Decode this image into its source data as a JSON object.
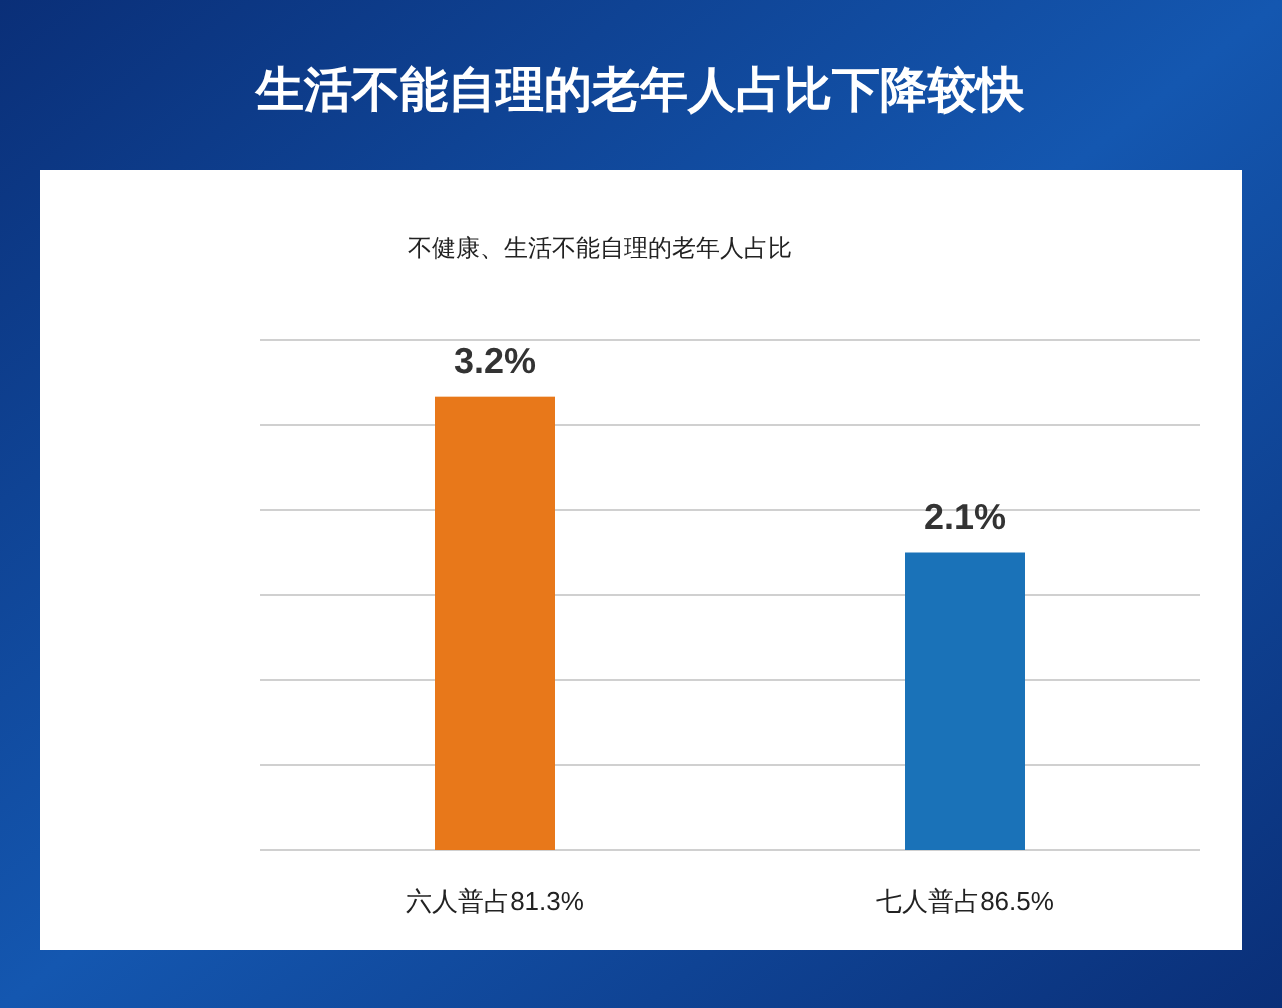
{
  "chart_data": {
    "type": "bar",
    "title": "生活不能自理的老年人占比下降较快",
    "subtitle": "不健康、生活不能自理的老年人占比",
    "categories": [
      "六人普占81.3%",
      "七人普占86.5%"
    ],
    "values": [
      3.2,
      2.1
    ],
    "colors": [
      "#e8781a",
      "#1a72b8"
    ],
    "value_labels": [
      "3.2%",
      "2.1%"
    ],
    "ylim": [
      0,
      3.6
    ],
    "yticks": [
      {
        "value": 0,
        "label": null
      },
      {
        "value": 0.6,
        "label": null
      },
      {
        "value": 1.2,
        "label": null
      },
      {
        "value": 1.8,
        "label": null
      },
      {
        "value": 2.4,
        "label": null
      },
      {
        "value": 3.0,
        "label": null
      },
      {
        "value": 3.6,
        "label": null
      }
    ],
    "grid": "y",
    "tick_labels": "x"
  }
}
